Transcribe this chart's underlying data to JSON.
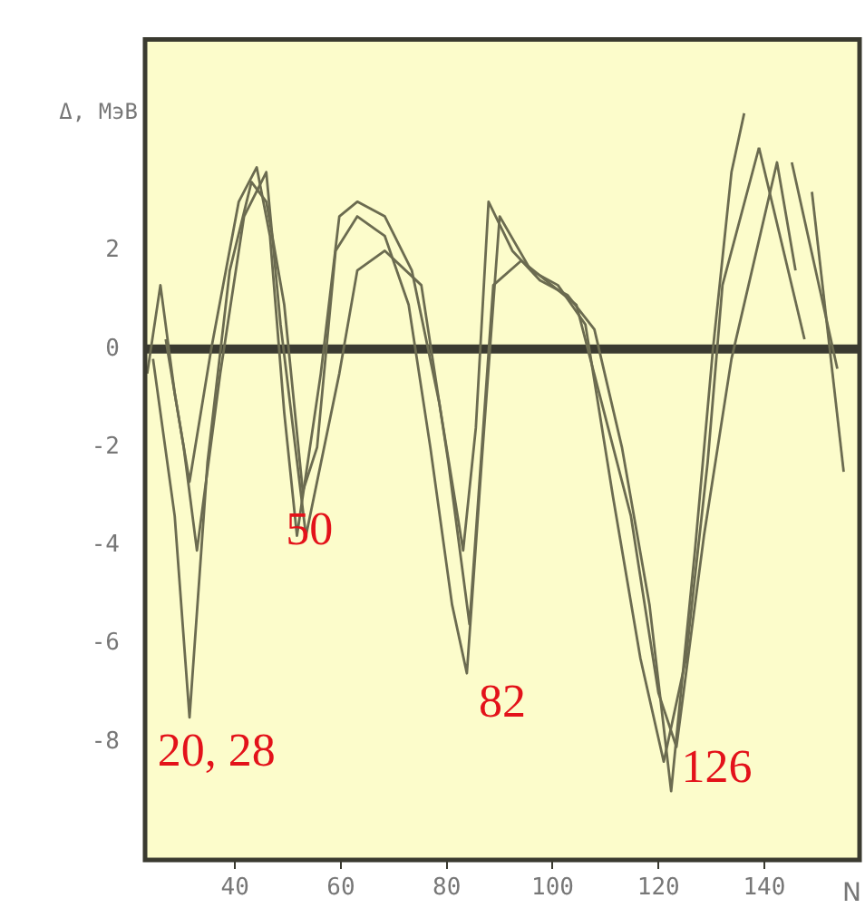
{
  "chart_data": {
    "type": "line",
    "xlabel": "N",
    "ylabel": "Δ, МэВ",
    "xlim": [
      23,
      158
    ],
    "xticks": [
      40,
      60,
      80,
      100,
      120,
      140
    ],
    "ylim": [
      -10.4,
      6.3
    ],
    "yticks": [
      -8,
      -6,
      -4,
      -2,
      0,
      2
    ],
    "legend": false,
    "marker": "none",
    "line_style": "solid",
    "ref_lines": [
      {
        "axis": "y",
        "value": 0,
        "color": "#3a3a30"
      }
    ],
    "annotations": [
      "20, 28",
      "50",
      "82",
      "126"
    ],
    "series": [
      {
        "color": "#6b6b50",
        "x": [
          23.4,
          25.9,
          28.6,
          31.4,
          35.5,
          40.7,
          44.1,
          46.6,
          49.3,
          51.7,
          56.2,
          59.7,
          63.1,
          68.3,
          73.4,
          78.6,
          83.1,
          85.5,
          87.9,
          92.4,
          97.6,
          102.8,
          107.9,
          113.1,
          118.3,
          122.4,
          126.9,
          130.3,
          133.8,
          136.2
        ],
        "values": [
          -0.5,
          1.3,
          -0.9,
          -2.7,
          0,
          3.0,
          3.7,
          2.3,
          -1.3,
          -3.8,
          -0.5,
          2.7,
          3.0,
          2.7,
          1.6,
          -1.1,
          -4.1,
          -1.6,
          3.0,
          2.0,
          1.4,
          1.1,
          0.4,
          -2.0,
          -5.2,
          -9.0,
          -4.1,
          0,
          3.6,
          4.8
        ]
      },
      {
        "color": "#6b6b50",
        "x": [
          24.5,
          28.6,
          31.4,
          34.8,
          39.0,
          43.1,
          45.9,
          49.3,
          52.8,
          55.5,
          59.0,
          63.1,
          68.3,
          72.8,
          76.9,
          81.0,
          83.8,
          86.6,
          90.0,
          95.9,
          101.0,
          106.2,
          111.4,
          116.6,
          121.0,
          125.2,
          129.3,
          132.1,
          139.0
        ],
        "values": [
          -0.2,
          -3.4,
          -7.5,
          -2.3,
          1.6,
          3.4,
          3.0,
          0.9,
          -2.9,
          -2.0,
          2.0,
          2.7,
          2.3,
          0.9,
          -2.0,
          -5.2,
          -6.6,
          -2.3,
          2.7,
          1.6,
          1.3,
          0.5,
          -3.0,
          -6.3,
          -8.4,
          -6.3,
          -2.3,
          1.3,
          4.1
        ]
      },
      {
        "color": "#6b6b50",
        "x": [
          26.9,
          30.3,
          32.8,
          37.2,
          41.7,
          45.9,
          48.6,
          53.4,
          59.7,
          63.1,
          68.3,
          75.2,
          80.3,
          84.3,
          88.8,
          94.1,
          104.5,
          114.8,
          120.0,
          123.4,
          128.6,
          133.8,
          142.4,
          145.9
        ],
        "values": [
          0.2,
          -2.0,
          -4.1,
          -0.5,
          2.7,
          3.6,
          0.5,
          -3.8,
          -0.5,
          1.6,
          2.0,
          1.3,
          -2.3,
          -5.6,
          1.3,
          1.8,
          0.9,
          -3.4,
          -7.0,
          -8.1,
          -3.8,
          -0.2,
          3.8,
          1.6
        ]
      },
      {
        "color": "#6b6b50",
        "x": [
          139.0,
          147.6
        ],
        "values": [
          4.1,
          0.2
        ]
      },
      {
        "color": "#6b6b50",
        "x": [
          145.2,
          153.8
        ],
        "values": [
          3.8,
          -0.4
        ]
      },
      {
        "color": "#6b6b50",
        "x": [
          149.0,
          155.0
        ],
        "values": [
          3.2,
          -2.5
        ]
      }
    ]
  }
}
